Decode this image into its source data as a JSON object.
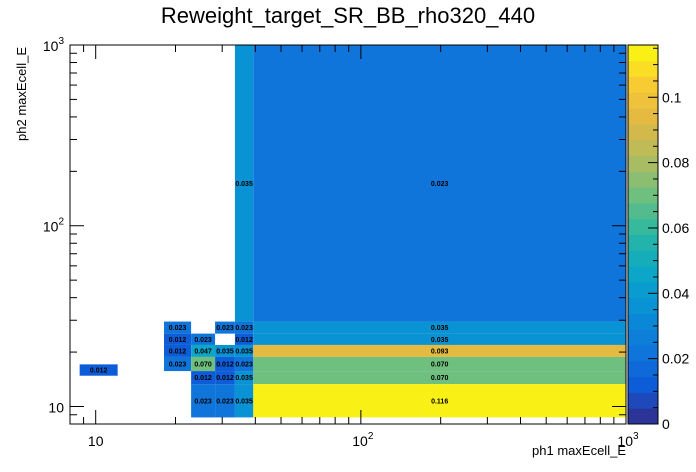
{
  "chart_data": {
    "type": "heatmap",
    "title": "Reweight_target_SR_BB_rho320_440",
    "xlabel": "ph1 maxEcell_E",
    "ylabel": "ph2 maxEcell_E",
    "x_scale": "log",
    "y_scale": "log",
    "xlim": [
      8,
      1000
    ],
    "ylim": [
      8,
      1000
    ],
    "x_tick_labels": [
      {
        "value": 10,
        "base": "10",
        "exp": ""
      },
      {
        "value": 100,
        "base": "10",
        "exp": "2"
      },
      {
        "value": 1000,
        "base": "10",
        "exp": "3"
      }
    ],
    "y_tick_labels": [
      {
        "value": 10,
        "base": "10",
        "exp": ""
      },
      {
        "value": 100,
        "base": "10",
        "exp": "2"
      },
      {
        "value": 1000,
        "base": "10",
        "exp": "3"
      }
    ],
    "colorbar": {
      "range": [
        0,
        0.116
      ],
      "ticks": [
        0,
        0.02,
        0.04,
        0.06,
        0.08,
        0.1
      ],
      "tick_labels": [
        "0",
        "0.02",
        "0.04",
        "0.06",
        "0.08",
        "0.1"
      ]
    },
    "cells": [
      {
        "x0": 8.7,
        "x1": 12.1,
        "y0": 14.8,
        "y1": 17.1,
        "value": 0.012,
        "label": "0.012"
      },
      {
        "x0": 18.1,
        "x1": 22.9,
        "y0": 25.3,
        "y1": 29.5,
        "value": 0.023,
        "label": "0.023"
      },
      {
        "x0": 28.2,
        "x1": 33.5,
        "y0": 25.3,
        "y1": 29.5,
        "value": 0.023,
        "label": "0.023"
      },
      {
        "x0": 33.5,
        "x1": 39.3,
        "y0": 25.3,
        "y1": 29.5,
        "value": 0.023,
        "label": "0.023"
      },
      {
        "x0": 39.3,
        "x1": 1000,
        "y0": 25.3,
        "y1": 29.5,
        "value": 0.035,
        "label": "0.035"
      },
      {
        "x0": 18.1,
        "x1": 22.9,
        "y0": 21.9,
        "y1": 25.3,
        "value": 0.012,
        "label": "0.012"
      },
      {
        "x0": 22.9,
        "x1": 28.2,
        "y0": 21.9,
        "y1": 25.3,
        "value": 0.023,
        "label": "0.023"
      },
      {
        "x0": 33.5,
        "x1": 39.3,
        "y0": 21.9,
        "y1": 25.3,
        "value": 0.012,
        "label": "0.012"
      },
      {
        "x0": 39.3,
        "x1": 1000,
        "y0": 21.9,
        "y1": 25.3,
        "value": 0.035,
        "label": "0.035"
      },
      {
        "x0": 18.1,
        "x1": 22.9,
        "y0": 18.8,
        "y1": 21.9,
        "value": 0.012,
        "label": "0.012"
      },
      {
        "x0": 22.9,
        "x1": 28.2,
        "y0": 18.8,
        "y1": 21.9,
        "value": 0.047,
        "label": "0.047"
      },
      {
        "x0": 28.2,
        "x1": 33.5,
        "y0": 18.8,
        "y1": 21.9,
        "value": 0.035,
        "label": "0.035"
      },
      {
        "x0": 33.5,
        "x1": 39.3,
        "y0": 18.8,
        "y1": 21.9,
        "value": 0.035,
        "label": "0.035"
      },
      {
        "x0": 39.3,
        "x1": 1000,
        "y0": 18.8,
        "y1": 21.9,
        "value": 0.093,
        "label": "0.093"
      },
      {
        "x0": 18.1,
        "x1": 22.9,
        "y0": 15.7,
        "y1": 18.8,
        "value": 0.023,
        "label": "0.023"
      },
      {
        "x0": 22.9,
        "x1": 28.2,
        "y0": 15.7,
        "y1": 18.8,
        "value": 0.07,
        "label": "0.070"
      },
      {
        "x0": 28.2,
        "x1": 33.5,
        "y0": 15.7,
        "y1": 18.8,
        "value": 0.012,
        "label": "0.012"
      },
      {
        "x0": 33.5,
        "x1": 39.3,
        "y0": 15.7,
        "y1": 18.8,
        "value": 0.023,
        "label": "0.023"
      },
      {
        "x0": 39.3,
        "x1": 1000,
        "y0": 15.7,
        "y1": 18.8,
        "value": 0.07,
        "label": "0.070"
      },
      {
        "x0": 22.9,
        "x1": 28.2,
        "y0": 13.3,
        "y1": 15.7,
        "value": 0.012,
        "label": "0.012"
      },
      {
        "x0": 28.2,
        "x1": 33.5,
        "y0": 13.3,
        "y1": 15.7,
        "value": 0.012,
        "label": "0.012"
      },
      {
        "x0": 33.5,
        "x1": 39.3,
        "y0": 13.3,
        "y1": 15.7,
        "value": 0.035,
        "label": "0.035"
      },
      {
        "x0": 39.3,
        "x1": 1000,
        "y0": 13.3,
        "y1": 15.7,
        "value": 0.07,
        "label": "0.070"
      },
      {
        "x0": 22.9,
        "x1": 28.2,
        "y0": 8.7,
        "y1": 13.3,
        "value": 0.023,
        "label": "0.023"
      },
      {
        "x0": 28.2,
        "x1": 33.5,
        "y0": 8.7,
        "y1": 13.3,
        "value": 0.023,
        "label": "0.023"
      },
      {
        "x0": 33.5,
        "x1": 39.3,
        "y0": 8.7,
        "y1": 13.3,
        "value": 0.035,
        "label": "0.035"
      },
      {
        "x0": 39.3,
        "x1": 1000,
        "y0": 8.7,
        "y1": 13.3,
        "value": 0.116,
        "label": "0.116"
      },
      {
        "x0": 33.5,
        "x1": 39.3,
        "y0": 29.5,
        "y1": 1000,
        "value": 0.035,
        "label": "0.035"
      },
      {
        "x0": 39.3,
        "x1": 1000,
        "y0": 29.5,
        "y1": 1000,
        "value": 0.023,
        "label": "0.023"
      }
    ]
  }
}
